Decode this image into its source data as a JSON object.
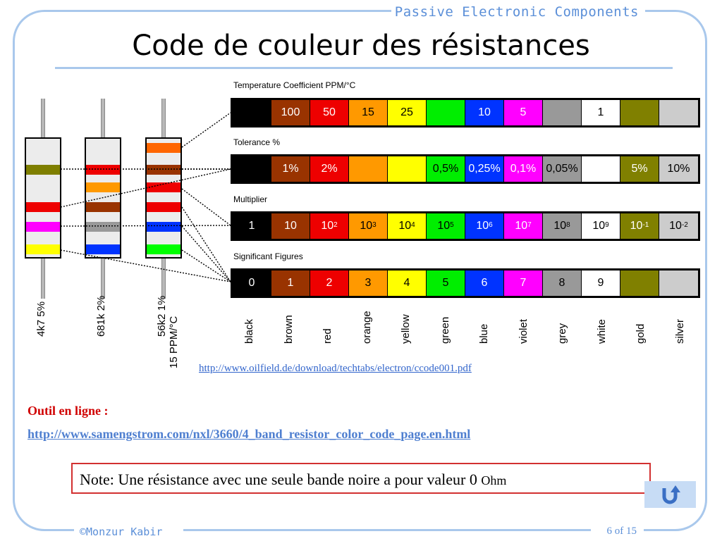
{
  "header": {
    "course_title": "Passive Electronic Components"
  },
  "slide": {
    "title": "Code de couleur des résistances"
  },
  "resistors": [
    {
      "label": "4k7   5%",
      "bands": [
        "#7f7f00",
        "#ee0000",
        "#ff00ff",
        "#ffff00"
      ]
    },
    {
      "label": "681k   2%",
      "bands": [
        "#ee0000",
        "#ff9900",
        "#993300",
        "#999999",
        "#0033ff"
      ]
    },
    {
      "label": "56k2   1%",
      "label2": "15 PPM/°C",
      "bands": [
        "#ff6600",
        "#993300",
        "#ee0000",
        "#ee0000",
        "#0033ff",
        "#00ff00"
      ]
    }
  ],
  "chart": {
    "sections": {
      "temp_coeff": "Temperature Coefficient PPM/°C",
      "tolerance": "Tolerance %",
      "multiplier": "Multiplier",
      "significant": "Significant Figures"
    },
    "colors": [
      {
        "name": "black",
        "hex": "#000000"
      },
      {
        "name": "brown",
        "hex": "#993300"
      },
      {
        "name": "red",
        "hex": "#ee0000"
      },
      {
        "name": "orange",
        "hex": "#ff9900"
      },
      {
        "name": "yellow",
        "hex": "#ffff00"
      },
      {
        "name": "green",
        "hex": "#00ee00"
      },
      {
        "name": "blue",
        "hex": "#0033ff"
      },
      {
        "name": "violet",
        "hex": "#ff00ff"
      },
      {
        "name": "grey",
        "hex": "#999999"
      },
      {
        "name": "white",
        "hex": "#ffffff"
      },
      {
        "name": "gold",
        "hex": "#808000"
      },
      {
        "name": "silver",
        "hex": "#cccccc"
      }
    ],
    "temp_coeff_values": [
      "",
      "100",
      "50",
      "15",
      "25",
      "",
      "10",
      "5",
      "",
      "1",
      "",
      ""
    ],
    "tolerance_values": [
      "",
      "1%",
      "2%",
      "",
      "",
      "0,5%",
      "0,25%",
      "0,1%",
      "0,05%",
      "",
      "5%",
      "10%"
    ],
    "multiplier_values": [
      "1",
      "10",
      "10",
      "10",
      "10",
      "10",
      "10",
      "10",
      "10",
      "10",
      "10",
      "10"
    ],
    "multiplier_exponents": [
      "",
      "",
      "2",
      "3",
      "4",
      "5",
      "6",
      "7",
      "8",
      "9",
      "-1",
      "-2"
    ],
    "significant_values": [
      "0",
      "1",
      "2",
      "3",
      "4",
      "5",
      "6",
      "7",
      "8",
      "9",
      "",
      ""
    ]
  },
  "source_link": "http://www.oilfield.de/download/techtabs/electron/ccode001.pdf",
  "online_tool": {
    "label": "Outil en ligne :",
    "url": "http://www.samengstrom.com/nxl/3660/4_band_resistor_color_code_page.en.html"
  },
  "note": {
    "text": "Note: Une résistance avec une seule bande noire a pour valeur 0 ",
    "unit": "Ohm"
  },
  "footer": {
    "author": "©Monzur Kabir",
    "page_num": "6",
    "page_of": " of 15"
  }
}
